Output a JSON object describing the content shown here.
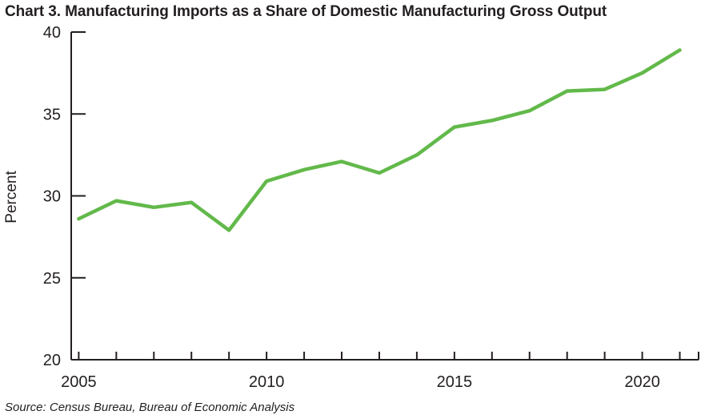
{
  "chart_data": {
    "type": "line",
    "title": "Chart 3. Manufacturing Imports as a Share of Domestic Manufacturing Gross Output",
    "xlabel": "",
    "ylabel": "Percent",
    "ylim": [
      20,
      40
    ],
    "xlim": [
      2004.8,
      2021.5
    ],
    "yticks": [
      20,
      25,
      30,
      35,
      40
    ],
    "xticks_labeled": [
      2005,
      2010,
      2015,
      2020
    ],
    "xticks_minor": [
      2005,
      2006,
      2007,
      2008,
      2009,
      2010,
      2011,
      2012,
      2013,
      2014,
      2015,
      2016,
      2017,
      2018,
      2019,
      2020,
      2021
    ],
    "grid": false,
    "line_color": "#62b94a",
    "series": [
      {
        "name": "Manufacturing imports share",
        "x": [
          2005,
          2006,
          2007,
          2008,
          2009,
          2010,
          2011,
          2012,
          2013,
          2014,
          2015,
          2016,
          2017,
          2018,
          2019,
          2020,
          2021
        ],
        "values": [
          28.6,
          29.7,
          29.3,
          29.6,
          27.9,
          30.9,
          31.6,
          32.1,
          31.4,
          32.5,
          34.2,
          34.6,
          35.2,
          36.4,
          36.5,
          37.5,
          38.9
        ]
      }
    ],
    "source": "Source: Census Bureau, Bureau of Economic Analysis"
  }
}
